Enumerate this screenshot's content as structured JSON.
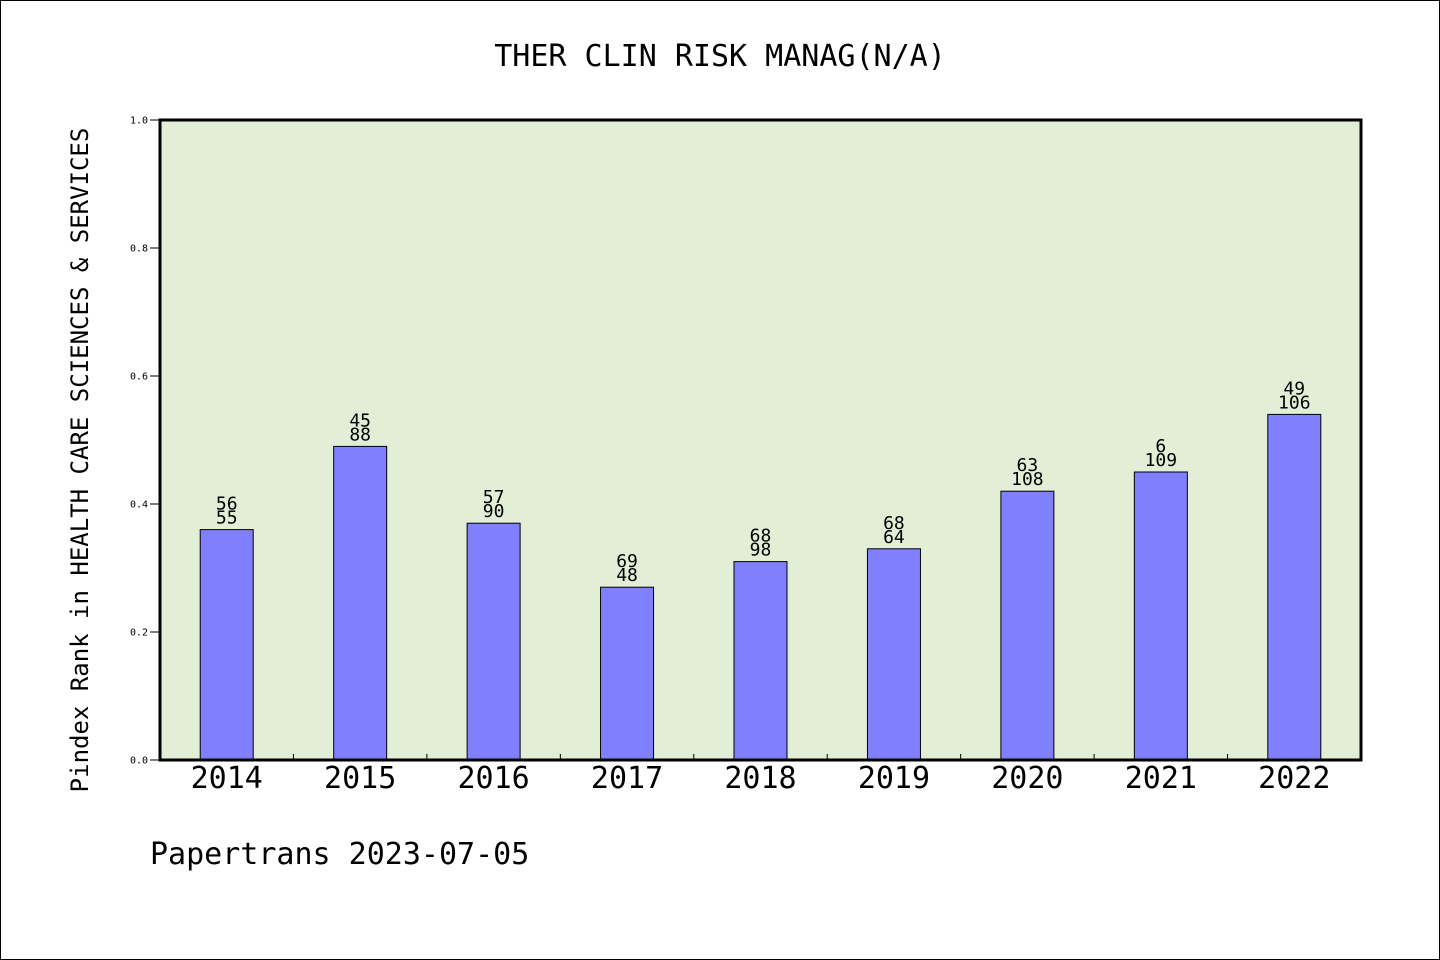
{
  "chart_data": {
    "type": "bar",
    "title": "THER CLIN RISK MANAG(N/A)",
    "ylabel": "Pindex Rank in HEALTH CARE SCIENCES & SERVICES",
    "xlabel": "",
    "footer": "Papertrans 2023-07-05",
    "ylim": [
      0.0,
      1.0
    ],
    "yticks": [
      "0.0",
      "0.2",
      "0.4",
      "0.6",
      "0.8",
      "1.0"
    ],
    "grid": false,
    "colors": {
      "plot_background": "#e2efd6",
      "bar_fill": "#8080ff",
      "bar_stroke": "#000000"
    },
    "categories": [
      "2014",
      "2015",
      "2016",
      "2017",
      "2018",
      "2019",
      "2020",
      "2021",
      "2022"
    ],
    "values": [
      0.36,
      0.49,
      0.37,
      0.27,
      0.31,
      0.33,
      0.42,
      0.45,
      0.54
    ],
    "labels_top": [
      "56",
      "45",
      "57",
      "69",
      "68",
      "68",
      "63",
      "6",
      "49"
    ],
    "labels_bottom": [
      "55",
      "88",
      "90",
      "48",
      "98",
      "64",
      "108",
      "109",
      "106"
    ]
  }
}
